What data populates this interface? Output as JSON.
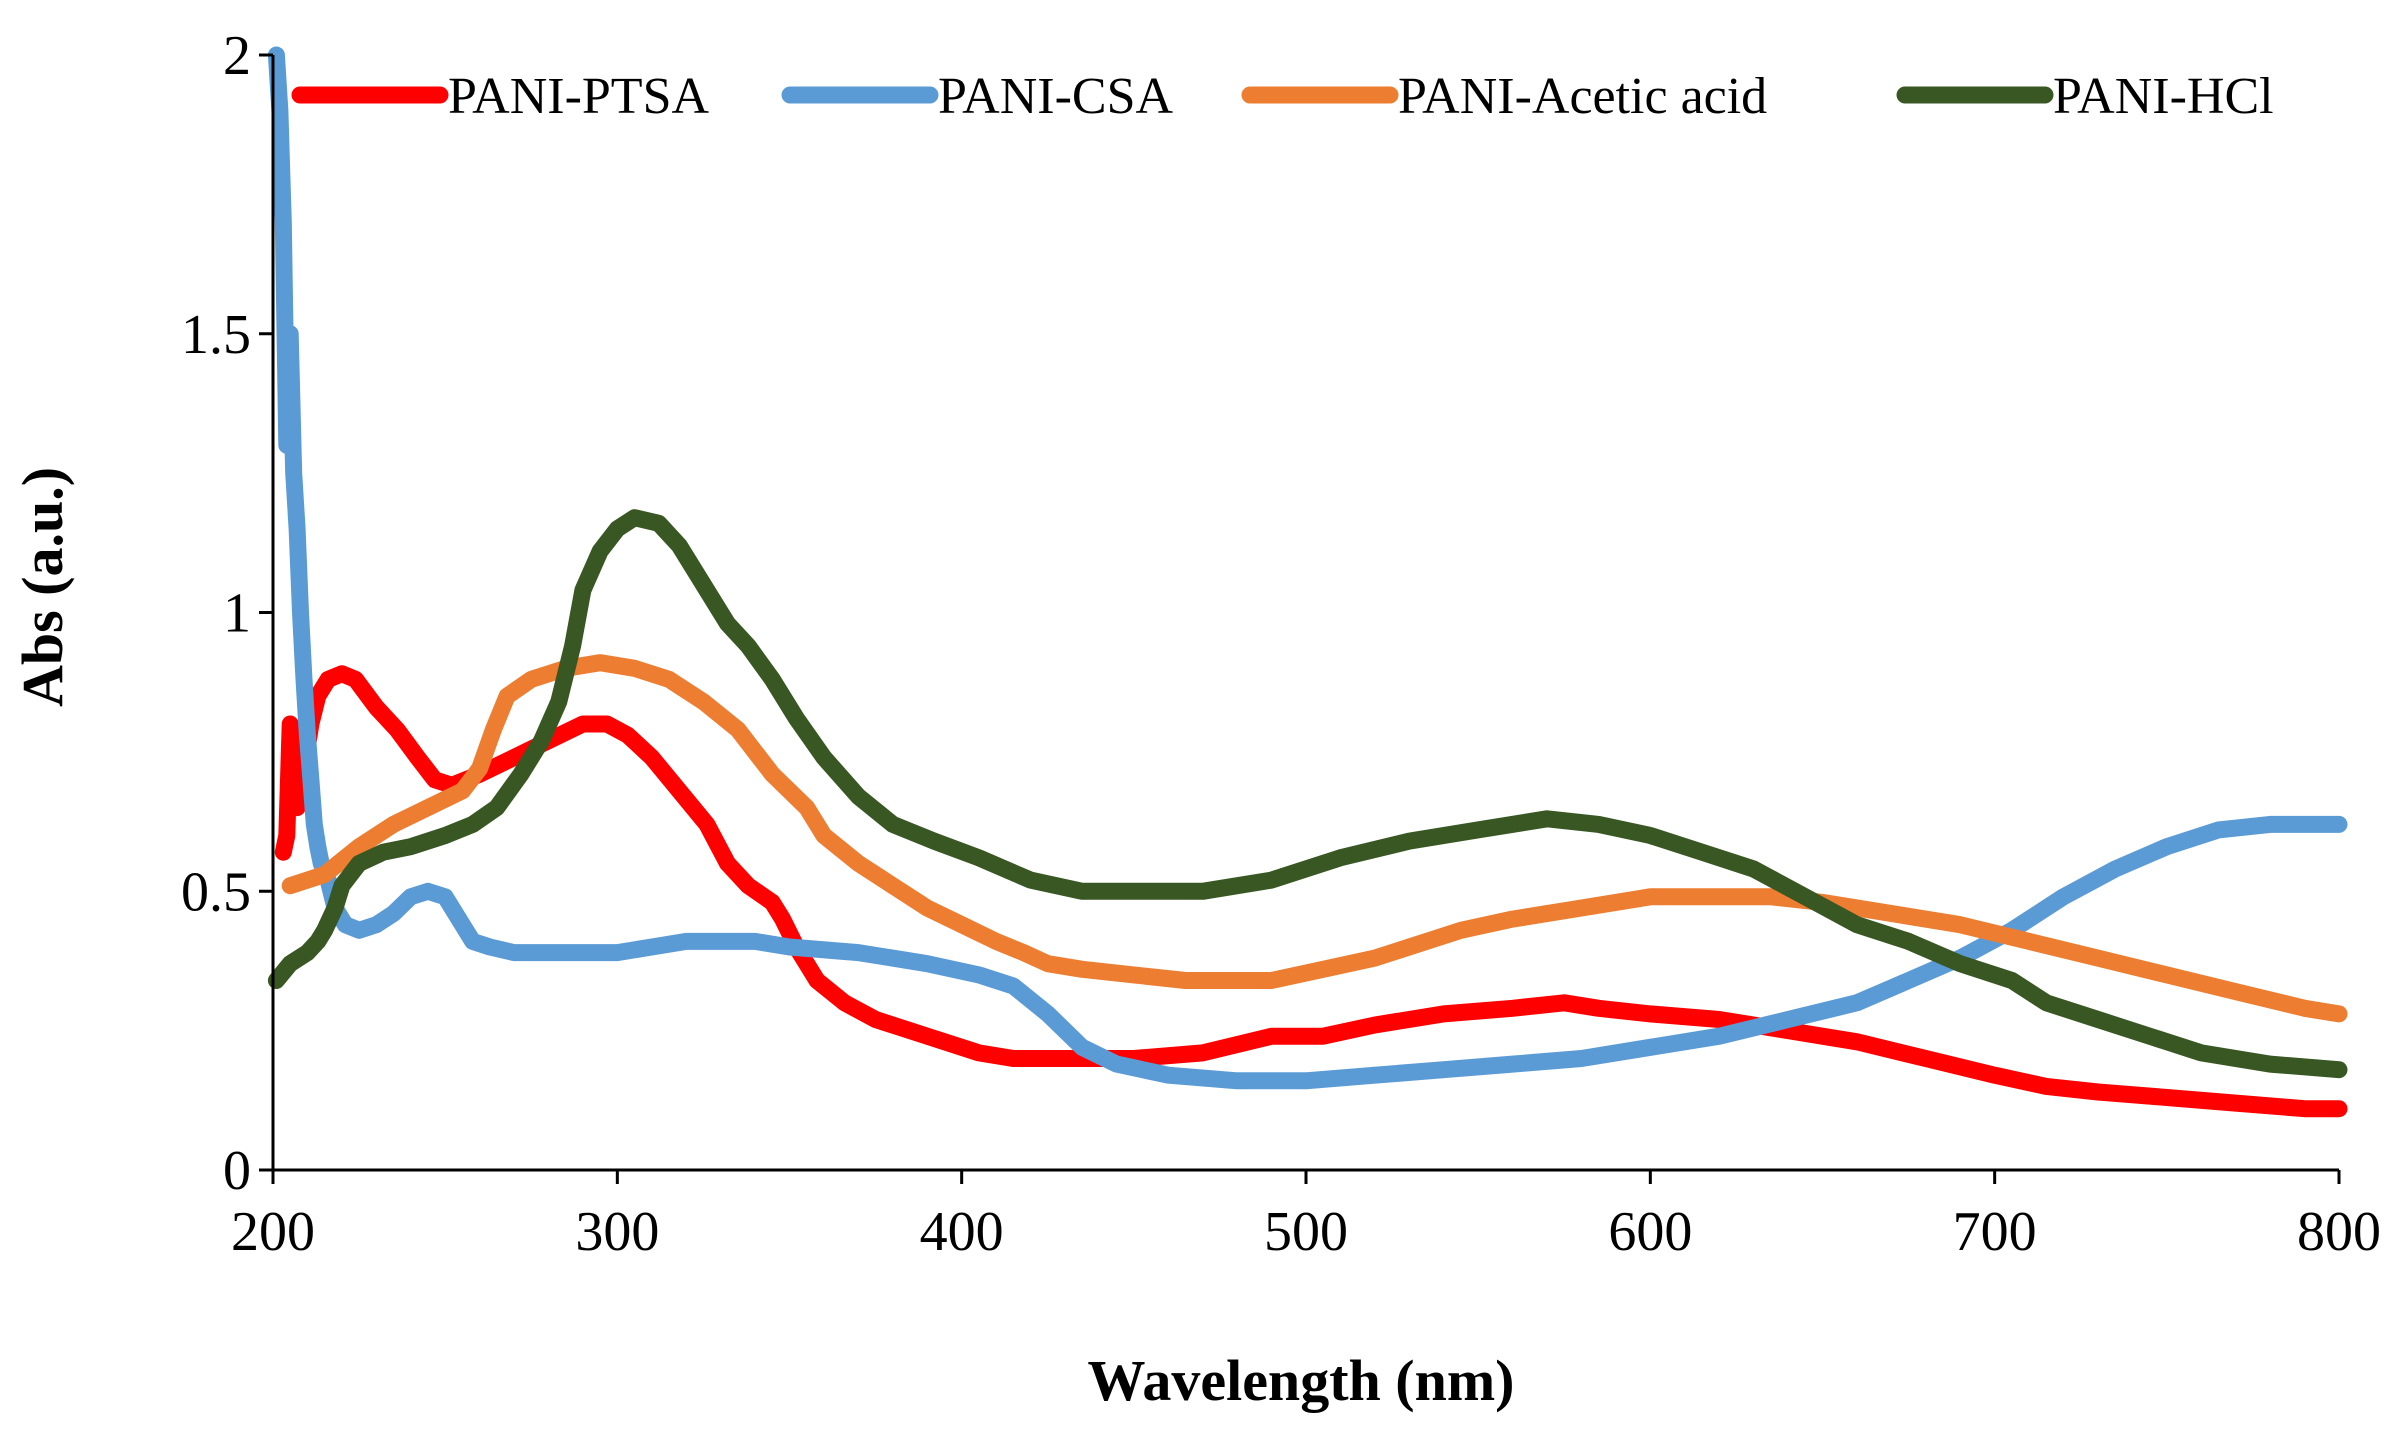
{
  "chart_data": {
    "type": "line",
    "title": "",
    "xlabel": "Wavelength (nm)",
    "ylabel": "Abs (a.u.)",
    "xlim": [
      200,
      800
    ],
    "ylim": [
      0,
      2
    ],
    "xticks": [
      200,
      300,
      400,
      500,
      600,
      700,
      800
    ],
    "yticks": [
      0,
      0.5,
      1,
      1.5,
      2
    ],
    "xtick_labels": [
      "200",
      "300",
      "400",
      "500",
      "600",
      "700",
      "800"
    ],
    "ytick_labels": [
      "0",
      "0.5",
      "1",
      "1.5",
      "2"
    ],
    "grid": false,
    "legend_position": "top",
    "series": [
      {
        "name": "PANI-PTSA",
        "color": "#ff0000",
        "points": [
          [
            203,
            0.57
          ],
          [
            204,
            0.6
          ],
          [
            205,
            0.8
          ],
          [
            207,
            0.65
          ],
          [
            209,
            0.72
          ],
          [
            211,
            0.8
          ],
          [
            213,
            0.85
          ],
          [
            216,
            0.88
          ],
          [
            220,
            0.89
          ],
          [
            224,
            0.88
          ],
          [
            230,
            0.83
          ],
          [
            236,
            0.79
          ],
          [
            242,
            0.74
          ],
          [
            247,
            0.7
          ],
          [
            252,
            0.69
          ],
          [
            260,
            0.71
          ],
          [
            270,
            0.74
          ],
          [
            280,
            0.77
          ],
          [
            290,
            0.8
          ],
          [
            297,
            0.8
          ],
          [
            303,
            0.78
          ],
          [
            310,
            0.74
          ],
          [
            318,
            0.68
          ],
          [
            326,
            0.62
          ],
          [
            332,
            0.55
          ],
          [
            338,
            0.51
          ],
          [
            345,
            0.48
          ],
          [
            348,
            0.45
          ],
          [
            352,
            0.4
          ],
          [
            358,
            0.34
          ],
          [
            366,
            0.3
          ],
          [
            375,
            0.27
          ],
          [
            390,
            0.24
          ],
          [
            405,
            0.21
          ],
          [
            415,
            0.2
          ],
          [
            430,
            0.2
          ],
          [
            450,
            0.2
          ],
          [
            470,
            0.21
          ],
          [
            490,
            0.24
          ],
          [
            505,
            0.24
          ],
          [
            520,
            0.26
          ],
          [
            540,
            0.28
          ],
          [
            560,
            0.29
          ],
          [
            575,
            0.3
          ],
          [
            585,
            0.29
          ],
          [
            600,
            0.28
          ],
          [
            620,
            0.27
          ],
          [
            640,
            0.25
          ],
          [
            660,
            0.23
          ],
          [
            680,
            0.2
          ],
          [
            700,
            0.17
          ],
          [
            715,
            0.15
          ],
          [
            730,
            0.14
          ],
          [
            750,
            0.13
          ],
          [
            770,
            0.12
          ],
          [
            790,
            0.11
          ],
          [
            800,
            0.11
          ]
        ]
      },
      {
        "name": "PANI-CSA",
        "color": "#5b9bd5",
        "points": [
          [
            201,
            2.0
          ],
          [
            202,
            1.9
          ],
          [
            203,
            1.7
          ],
          [
            204,
            1.3
          ],
          [
            205,
            1.5
          ],
          [
            206,
            1.25
          ],
          [
            207,
            1.15
          ],
          [
            208,
            1.0
          ],
          [
            209,
            0.88
          ],
          [
            210,
            0.78
          ],
          [
            211,
            0.7
          ],
          [
            212,
            0.62
          ],
          [
            213,
            0.58
          ],
          [
            214,
            0.55
          ],
          [
            216,
            0.52
          ],
          [
            218,
            0.47
          ],
          [
            221,
            0.44
          ],
          [
            225,
            0.43
          ],
          [
            230,
            0.44
          ],
          [
            235,
            0.46
          ],
          [
            240,
            0.49
          ],
          [
            245,
            0.5
          ],
          [
            250,
            0.49
          ],
          [
            254,
            0.45
          ],
          [
            258,
            0.41
          ],
          [
            263,
            0.4
          ],
          [
            270,
            0.39
          ],
          [
            280,
            0.39
          ],
          [
            290,
            0.39
          ],
          [
            300,
            0.39
          ],
          [
            310,
            0.4
          ],
          [
            320,
            0.41
          ],
          [
            330,
            0.41
          ],
          [
            340,
            0.41
          ],
          [
            350,
            0.4
          ],
          [
            370,
            0.39
          ],
          [
            390,
            0.37
          ],
          [
            405,
            0.35
          ],
          [
            415,
            0.33
          ],
          [
            425,
            0.28
          ],
          [
            435,
            0.22
          ],
          [
            445,
            0.19
          ],
          [
            460,
            0.17
          ],
          [
            480,
            0.16
          ],
          [
            500,
            0.16
          ],
          [
            520,
            0.17
          ],
          [
            540,
            0.18
          ],
          [
            560,
            0.19
          ],
          [
            580,
            0.2
          ],
          [
            600,
            0.22
          ],
          [
            620,
            0.24
          ],
          [
            640,
            0.27
          ],
          [
            660,
            0.3
          ],
          [
            675,
            0.34
          ],
          [
            690,
            0.38
          ],
          [
            705,
            0.43
          ],
          [
            720,
            0.49
          ],
          [
            735,
            0.54
          ],
          [
            750,
            0.58
          ],
          [
            765,
            0.61
          ],
          [
            780,
            0.62
          ],
          [
            800,
            0.62
          ]
        ]
      },
      {
        "name": "PANI-Acetic acid",
        "color": "#ed7d31",
        "points": [
          [
            205,
            0.51
          ],
          [
            215,
            0.53
          ],
          [
            225,
            0.58
          ],
          [
            235,
            0.62
          ],
          [
            245,
            0.65
          ],
          [
            255,
            0.68
          ],
          [
            260,
            0.72
          ],
          [
            264,
            0.79
          ],
          [
            268,
            0.85
          ],
          [
            275,
            0.88
          ],
          [
            285,
            0.9
          ],
          [
            295,
            0.91
          ],
          [
            305,
            0.9
          ],
          [
            315,
            0.88
          ],
          [
            325,
            0.84
          ],
          [
            335,
            0.79
          ],
          [
            340,
            0.75
          ],
          [
            345,
            0.71
          ],
          [
            355,
            0.65
          ],
          [
            360,
            0.6
          ],
          [
            370,
            0.55
          ],
          [
            380,
            0.51
          ],
          [
            390,
            0.47
          ],
          [
            400,
            0.44
          ],
          [
            410,
            0.41
          ],
          [
            418,
            0.39
          ],
          [
            425,
            0.37
          ],
          [
            435,
            0.36
          ],
          [
            450,
            0.35
          ],
          [
            465,
            0.34
          ],
          [
            480,
            0.34
          ],
          [
            490,
            0.34
          ],
          [
            505,
            0.36
          ],
          [
            520,
            0.38
          ],
          [
            535,
            0.41
          ],
          [
            545,
            0.43
          ],
          [
            560,
            0.45
          ],
          [
            580,
            0.47
          ],
          [
            600,
            0.49
          ],
          [
            620,
            0.49
          ],
          [
            635,
            0.49
          ],
          [
            650,
            0.48
          ],
          [
            670,
            0.46
          ],
          [
            690,
            0.44
          ],
          [
            710,
            0.41
          ],
          [
            730,
            0.38
          ],
          [
            750,
            0.35
          ],
          [
            770,
            0.32
          ],
          [
            790,
            0.29
          ],
          [
            800,
            0.28
          ]
        ]
      },
      {
        "name": "PANI-HCl",
        "color": "#385723",
        "points": [
          [
            201,
            0.34
          ],
          [
            205,
            0.37
          ],
          [
            210,
            0.39
          ],
          [
            213,
            0.41
          ],
          [
            215,
            0.43
          ],
          [
            218,
            0.47
          ],
          [
            220,
            0.51
          ],
          [
            225,
            0.55
          ],
          [
            232,
            0.57
          ],
          [
            240,
            0.58
          ],
          [
            250,
            0.6
          ],
          [
            258,
            0.62
          ],
          [
            265,
            0.65
          ],
          [
            272,
            0.71
          ],
          [
            278,
            0.77
          ],
          [
            283,
            0.84
          ],
          [
            287,
            0.94
          ],
          [
            290,
            1.04
          ],
          [
            295,
            1.11
          ],
          [
            300,
            1.15
          ],
          [
            305,
            1.17
          ],
          [
            312,
            1.16
          ],
          [
            318,
            1.12
          ],
          [
            325,
            1.05
          ],
          [
            332,
            0.98
          ],
          [
            338,
            0.94
          ],
          [
            345,
            0.88
          ],
          [
            352,
            0.81
          ],
          [
            360,
            0.74
          ],
          [
            370,
            0.67
          ],
          [
            380,
            0.62
          ],
          [
            392,
            0.59
          ],
          [
            405,
            0.56
          ],
          [
            420,
            0.52
          ],
          [
            435,
            0.5
          ],
          [
            450,
            0.5
          ],
          [
            470,
            0.5
          ],
          [
            490,
            0.52
          ],
          [
            510,
            0.56
          ],
          [
            530,
            0.59
          ],
          [
            550,
            0.61
          ],
          [
            570,
            0.63
          ],
          [
            585,
            0.62
          ],
          [
            600,
            0.6
          ],
          [
            615,
            0.57
          ],
          [
            630,
            0.54
          ],
          [
            645,
            0.49
          ],
          [
            660,
            0.44
          ],
          [
            675,
            0.41
          ],
          [
            690,
            0.37
          ],
          [
            705,
            0.34
          ],
          [
            715,
            0.3
          ],
          [
            730,
            0.27
          ],
          [
            745,
            0.24
          ],
          [
            760,
            0.21
          ],
          [
            780,
            0.19
          ],
          [
            800,
            0.18
          ]
        ]
      }
    ]
  }
}
